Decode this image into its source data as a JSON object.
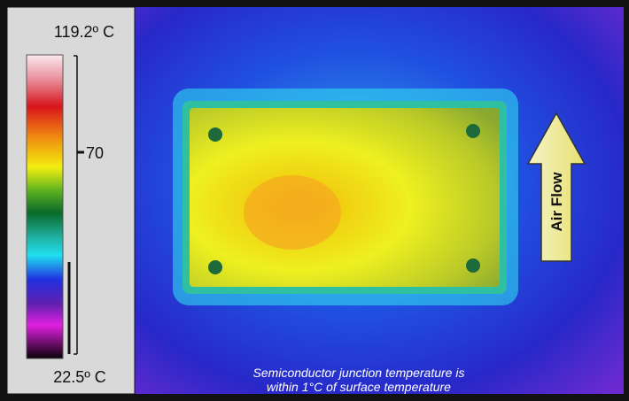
{
  "scale": {
    "max_label": "119.2º C",
    "min_label": "22.5º C",
    "tick_label": "70"
  },
  "arrow": {
    "label": "Air Flow"
  },
  "caption": {
    "lines": [
      "Semiconductor junction temperature is",
      "within 1°C of surface temperature"
    ]
  }
}
